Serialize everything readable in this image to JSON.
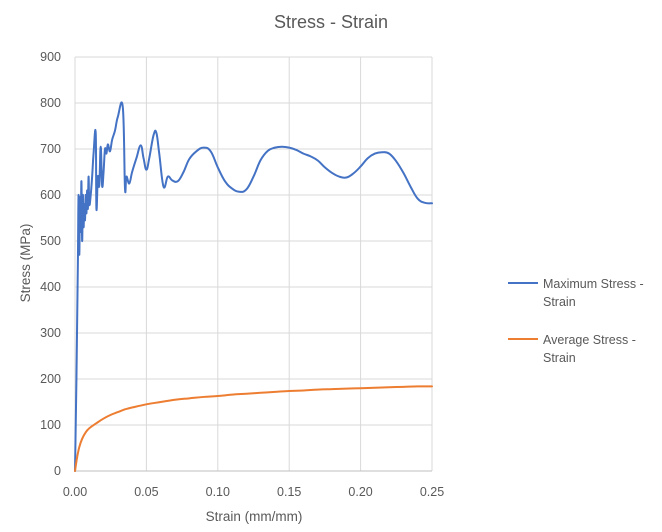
{
  "chart_data": {
    "type": "line",
    "title": "Stress - Strain",
    "xlabel": "Strain (mm/mm)",
    "ylabel": "Stress (MPa)",
    "xlim": [
      0,
      0.25
    ],
    "ylim": [
      0,
      900
    ],
    "x_ticks": [
      "0.00",
      "0.05",
      "0.10",
      "0.15",
      "0.20",
      "0.25"
    ],
    "y_ticks": [
      "0",
      "100",
      "200",
      "300",
      "400",
      "500",
      "600",
      "700",
      "800",
      "900"
    ],
    "grid": "vertical and horizontal",
    "legend_position": "right",
    "series": [
      {
        "name": "Maximum Stress - Strain",
        "color": "#4472C4",
        "points": [
          [
            0,
            0
          ],
          [
            0.001,
            200
          ],
          [
            0.002,
            450
          ],
          [
            0.0025,
            600
          ],
          [
            0.003,
            470
          ],
          [
            0.0035,
            595
          ],
          [
            0.004,
            520
          ],
          [
            0.0045,
            630
          ],
          [
            0.005,
            500
          ],
          [
            0.0055,
            600
          ],
          [
            0.006,
            530
          ],
          [
            0.0065,
            580
          ],
          [
            0.007,
            545
          ],
          [
            0.0075,
            600
          ],
          [
            0.008,
            560
          ],
          [
            0.0085,
            610
          ],
          [
            0.009,
            570
          ],
          [
            0.0095,
            640
          ],
          [
            0.01,
            580
          ],
          [
            0.011,
            600
          ],
          [
            0.012,
            640
          ],
          [
            0.013,
            690
          ],
          [
            0.0145,
            735
          ],
          [
            0.015,
            570
          ],
          [
            0.016,
            640
          ],
          [
            0.017,
            620
          ],
          [
            0.018,
            705
          ],
          [
            0.019,
            620
          ],
          [
            0.02,
            650
          ],
          [
            0.021,
            700
          ],
          [
            0.022,
            690
          ],
          [
            0.023,
            710
          ],
          [
            0.0245,
            695
          ],
          [
            0.026,
            720
          ],
          [
            0.028,
            740
          ],
          [
            0.03,
            770
          ],
          [
            0.0335,
            790
          ],
          [
            0.035,
            615
          ],
          [
            0.036,
            640
          ],
          [
            0.038,
            625
          ],
          [
            0.04,
            650
          ],
          [
            0.043,
            680
          ],
          [
            0.046,
            708
          ],
          [
            0.048,
            680
          ],
          [
            0.05,
            655
          ],
          [
            0.052,
            680
          ],
          [
            0.055,
            730
          ],
          [
            0.057,
            735
          ],
          [
            0.059,
            690
          ],
          [
            0.062,
            618
          ],
          [
            0.065,
            640
          ],
          [
            0.068,
            632
          ],
          [
            0.072,
            630
          ],
          [
            0.076,
            650
          ],
          [
            0.08,
            678
          ],
          [
            0.085,
            695
          ],
          [
            0.09,
            703
          ],
          [
            0.095,
            695
          ],
          [
            0.1,
            660
          ],
          [
            0.105,
            630
          ],
          [
            0.11,
            614
          ],
          [
            0.115,
            607
          ],
          [
            0.12,
            612
          ],
          [
            0.125,
            640
          ],
          [
            0.13,
            676
          ],
          [
            0.135,
            696
          ],
          [
            0.14,
            703
          ],
          [
            0.145,
            705
          ],
          [
            0.15,
            703
          ],
          [
            0.155,
            698
          ],
          [
            0.16,
            690
          ],
          [
            0.165,
            684
          ],
          [
            0.17,
            675
          ],
          [
            0.175,
            660
          ],
          [
            0.18,
            648
          ],
          [
            0.185,
            640
          ],
          [
            0.19,
            638
          ],
          [
            0.195,
            647
          ],
          [
            0.2,
            662
          ],
          [
            0.205,
            680
          ],
          [
            0.21,
            690
          ],
          [
            0.215,
            693
          ],
          [
            0.22,
            690
          ],
          [
            0.225,
            673
          ],
          [
            0.23,
            648
          ],
          [
            0.235,
            618
          ],
          [
            0.24,
            592
          ],
          [
            0.245,
            583
          ],
          [
            0.25,
            582
          ]
        ]
      },
      {
        "name": "Average Stress - Strain",
        "color": "#ED7D31",
        "points": [
          [
            0,
            0
          ],
          [
            0.0015,
            30
          ],
          [
            0.003,
            52
          ],
          [
            0.005,
            70
          ],
          [
            0.0075,
            84
          ],
          [
            0.01,
            93
          ],
          [
            0.015,
            104
          ],
          [
            0.02,
            114
          ],
          [
            0.025,
            122
          ],
          [
            0.03,
            128
          ],
          [
            0.035,
            134
          ],
          [
            0.04,
            138
          ],
          [
            0.05,
            145
          ],
          [
            0.06,
            150
          ],
          [
            0.07,
            155
          ],
          [
            0.08,
            158
          ],
          [
            0.09,
            161
          ],
          [
            0.1,
            163
          ],
          [
            0.11,
            166
          ],
          [
            0.12,
            168
          ],
          [
            0.13,
            170
          ],
          [
            0.14,
            172
          ],
          [
            0.15,
            174
          ],
          [
            0.16,
            175
          ],
          [
            0.17,
            177
          ],
          [
            0.18,
            178
          ],
          [
            0.19,
            179
          ],
          [
            0.2,
            180
          ],
          [
            0.21,
            181
          ],
          [
            0.22,
            182
          ],
          [
            0.23,
            183
          ],
          [
            0.24,
            184
          ],
          [
            0.25,
            184
          ]
        ]
      }
    ]
  }
}
